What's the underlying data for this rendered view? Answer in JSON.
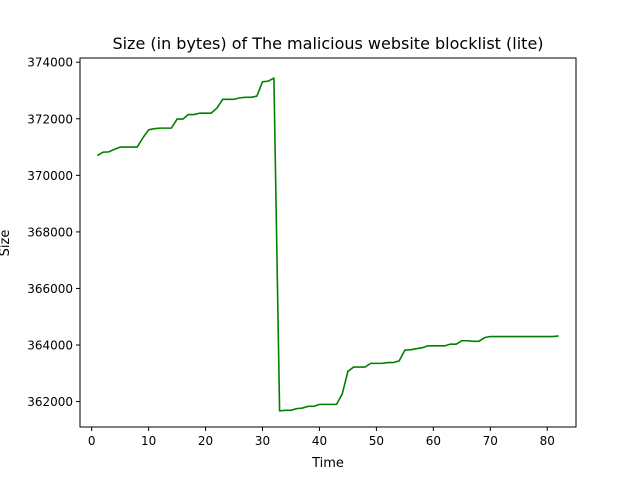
{
  "chart_data": {
    "type": "line",
    "title": "Size (in bytes) of The malicious website blocklist (lite)",
    "xlabel": "Time",
    "ylabel": "Size",
    "xlim": [
      -2.05,
      85.05
    ],
    "ylim": [
      361100,
      374150
    ],
    "xticks": [
      0,
      10,
      20,
      30,
      40,
      50,
      60,
      70,
      80
    ],
    "yticks": [
      362000,
      364000,
      366000,
      368000,
      370000,
      372000,
      374000
    ],
    "grid": false,
    "series": [
      {
        "color": "#008000",
        "x": [
          1,
          2,
          3,
          4,
          5,
          6,
          7,
          8,
          9,
          10,
          11,
          12,
          13,
          14,
          15,
          16,
          17,
          18,
          19,
          20,
          21,
          22,
          23,
          24,
          25,
          26,
          27,
          28,
          29,
          30,
          31,
          32,
          33,
          34,
          35,
          36,
          37,
          38,
          39,
          40,
          41,
          42,
          43,
          44,
          45,
          46,
          47,
          48,
          49,
          50,
          51,
          52,
          53,
          54,
          55,
          56,
          57,
          58,
          59,
          60,
          61,
          62,
          63,
          64,
          65,
          66,
          67,
          68,
          69,
          70,
          71,
          72,
          73,
          74,
          75,
          76,
          77,
          78,
          79,
          80,
          81,
          82
        ],
        "y": [
          370700,
          370820,
          370830,
          370920,
          371000,
          371000,
          371000,
          371000,
          371330,
          371610,
          371650,
          371670,
          371670,
          371670,
          371990,
          371990,
          372150,
          372150,
          372200,
          372200,
          372200,
          372380,
          372690,
          372690,
          372690,
          372740,
          372760,
          372760,
          372800,
          373310,
          373330,
          373440,
          361670,
          361690,
          361690,
          361750,
          361770,
          361830,
          361830,
          361900,
          361900,
          361900,
          361900,
          362270,
          363070,
          363220,
          363220,
          363220,
          363350,
          363350,
          363350,
          363380,
          363380,
          363440,
          363820,
          363830,
          363870,
          363900,
          363970,
          363970,
          363970,
          363970,
          364030,
          364030,
          364150,
          364150,
          364130,
          364130,
          364260,
          364300,
          364300,
          364300,
          364300,
          364300,
          364300,
          364300,
          364300,
          364300,
          364300,
          364300,
          364300,
          364320
        ]
      }
    ]
  }
}
